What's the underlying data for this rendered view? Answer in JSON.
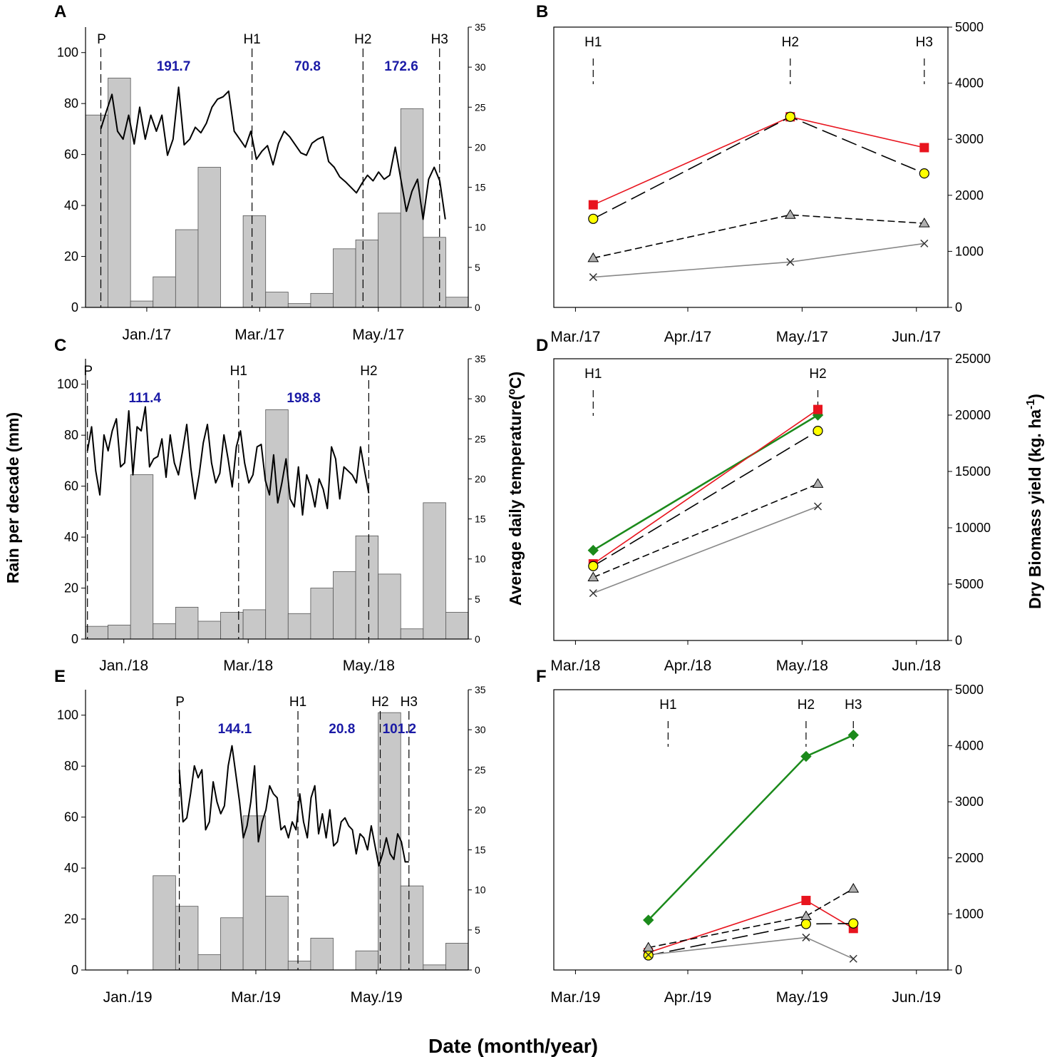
{
  "figure": {
    "xlabel": "Date (month/year)",
    "ylabel_left": "Rain per decade (mm)",
    "ylabel_mid": "Average daily temperature(ºC)",
    "ylabel_right_main": "Dry Biomass yield (kg. ha",
    "ylabel_right_sup": "-1",
    "ylabel_right_close": ")"
  },
  "colors": {
    "bar": "#c8c8c8",
    "bar_stroke": "#555555",
    "temp_line": "#000000",
    "rain_text": "#1a1aa6",
    "red": "#e8141e",
    "yellow": "#ffff00",
    "green": "#1b8a1b",
    "gray": "#b0b0b0"
  },
  "chart_data": [
    {
      "id": "A",
      "type": "bar+line",
      "xlim": [
        0,
        100
      ],
      "month_labels": [
        {
          "x": 16,
          "text": "Jan./17"
        },
        {
          "x": 45.5,
          "text": "Mar./17"
        },
        {
          "x": 76.5,
          "text": "May./17"
        }
      ],
      "rain_ylim": [
        0,
        110
      ],
      "rain_ticks": [
        0,
        20,
        40,
        60,
        80,
        100
      ],
      "temp_ylim": [
        0,
        35
      ],
      "temp_ticks": [
        0,
        5,
        10,
        15,
        20,
        25,
        30,
        35
      ],
      "rain_bars": [
        75.5,
        90,
        2.5,
        12,
        30.5,
        55,
        0,
        36,
        6,
        1.5,
        5.5,
        23,
        26.5,
        37,
        78,
        27.5,
        4
      ],
      "events": [
        {
          "x": 4,
          "label": "P"
        },
        {
          "x": 43.5,
          "label": "H1"
        },
        {
          "x": 72.5,
          "label": "H2"
        },
        {
          "x": 92.5,
          "label": "H3"
        }
      ],
      "rain_sums": [
        {
          "x": 23,
          "text": "191.7"
        },
        {
          "x": 58,
          "text": "70.8"
        },
        {
          "x": 82.5,
          "text": "172.6"
        }
      ],
      "temperature": {
        "x0": 4,
        "x1": 94,
        "values": [
          22.3,
          24.5,
          26.6,
          22.0,
          21.0,
          24.0,
          20.4,
          25.0,
          21.0,
          24.0,
          22.0,
          24.0,
          19.0,
          21.0,
          27.5,
          20.3,
          21.0,
          22.5,
          21.8,
          23.0,
          25.0,
          26.0,
          26.3,
          27.0,
          22.0,
          21.0,
          20.0,
          22.0,
          18.5,
          19.5,
          20.2,
          17.8,
          20.5,
          22.0,
          21.3,
          20.3,
          19.3,
          19.0,
          20.5,
          21.0,
          21.3,
          18.2,
          17.5,
          16.3,
          15.7,
          15.0,
          14.3,
          15.5,
          16.5,
          15.8,
          16.9,
          16.0,
          16.5,
          20.0,
          16.0,
          12.0,
          14.5,
          16.0,
          11.0,
          16.0,
          17.5,
          15.8,
          11.0
        ]
      }
    },
    {
      "id": "B",
      "type": "line",
      "xlim": [
        0,
        100
      ],
      "month_labels": [
        {
          "x": 5.5,
          "text": "Mar./17"
        },
        {
          "x": 34,
          "text": "Apr./17"
        },
        {
          "x": 63,
          "text": "May./17"
        },
        {
          "x": 92,
          "text": "Jun./17"
        }
      ],
      "ylim": [
        0,
        5000
      ],
      "yticks": [
        0,
        1000,
        2000,
        3000,
        4000,
        5000
      ],
      "harvests": [
        {
          "x": 10,
          "label": "H1"
        },
        {
          "x": 60,
          "label": "H2"
        },
        {
          "x": 94,
          "label": "H3"
        }
      ],
      "series": [
        {
          "name": "red square",
          "marker": "square",
          "color": "#e8141e",
          "dash": "",
          "x": [
            10,
            60,
            94
          ],
          "values": [
            1830,
            3400,
            2850
          ]
        },
        {
          "name": "yellow circle",
          "marker": "circle",
          "color": "#000000",
          "dash": "22 8",
          "x": [
            10,
            60,
            94
          ],
          "values": [
            1580,
            3400,
            2390
          ]
        },
        {
          "name": "gray triangle",
          "marker": "triangle",
          "color": "#000000",
          "dash": "10 5",
          "x": [
            10,
            60,
            94
          ],
          "values": [
            880,
            1650,
            1500
          ]
        },
        {
          "name": "cross",
          "marker": "x",
          "color": "#888888",
          "dash": "",
          "x": [
            10,
            60,
            94
          ],
          "values": [
            540,
            810,
            1140
          ]
        }
      ]
    },
    {
      "id": "C",
      "type": "bar+line",
      "xlim": [
        0,
        100
      ],
      "month_labels": [
        {
          "x": 10,
          "text": "Jan./18"
        },
        {
          "x": 42.5,
          "text": "Mar./18"
        },
        {
          "x": 74,
          "text": "May./18"
        }
      ],
      "rain_ylim": [
        0,
        110
      ],
      "rain_ticks": [
        0,
        20,
        40,
        60,
        80,
        100
      ],
      "temp_ylim": [
        0,
        35
      ],
      "temp_ticks": [
        0,
        5,
        10,
        15,
        20,
        25,
        30,
        35
      ],
      "rain_bars": [
        5,
        5.5,
        64.5,
        6,
        12.5,
        7,
        10.5,
        11.5,
        90,
        10,
        20,
        26.5,
        40.5,
        25.5,
        4,
        53.5,
        10.5
      ],
      "events": [
        {
          "x": 0.5,
          "label": "P"
        },
        {
          "x": 40,
          "label": "H1"
        },
        {
          "x": 74,
          "label": "H2"
        }
      ],
      "rain_sums": [
        {
          "x": 15.5,
          "text": "111.4"
        },
        {
          "x": 57,
          "text": "198.8"
        }
      ],
      "temperature": {
        "x0": 0.5,
        "x1": 74,
        "values": [
          23.5,
          26.5,
          21.0,
          18.0,
          25.5,
          23.5,
          26.0,
          27.5,
          21.5,
          22.0,
          28.5,
          20.5,
          26.5,
          26.0,
          29.0,
          21.5,
          22.5,
          22.8,
          25.0,
          20.2,
          25.5,
          22.0,
          20.5,
          23.5,
          26.8,
          21.3,
          17.5,
          20.5,
          24.5,
          26.8,
          22.0,
          19.5,
          20.7,
          25.5,
          22.5,
          19.0,
          24.0,
          26.0,
          22.0,
          19.5,
          20.5,
          24.0,
          24.3,
          19.8,
          18.0,
          23.0,
          17.0,
          19.5,
          22.5,
          17.5,
          16.5,
          21.5,
          15.5,
          20.5,
          19.0,
          16.5,
          20.0,
          18.7,
          16.3,
          24.0,
          22.5,
          17.5,
          21.5,
          21.0,
          20.5,
          19.5,
          24.0,
          21.0,
          18.2
        ]
      }
    },
    {
      "id": "D",
      "type": "line",
      "xlim": [
        0,
        100
      ],
      "month_labels": [
        {
          "x": 5.5,
          "text": "Mar./18"
        },
        {
          "x": 34,
          "text": "Apr./18"
        },
        {
          "x": 63,
          "text": "May./18"
        },
        {
          "x": 92,
          "text": "Jun./18"
        }
      ],
      "ylim": [
        0,
        25000
      ],
      "yticks": [
        0,
        5000,
        10000,
        15000,
        20000,
        25000
      ],
      "harvests": [
        {
          "x": 10,
          "label": "H1"
        },
        {
          "x": 67,
          "label": "H2"
        }
      ],
      "series": [
        {
          "name": "green diamond",
          "marker": "diamond",
          "color": "#1b8a1b",
          "dash": "",
          "x": [
            10,
            67
          ],
          "values": [
            8000,
            20000
          ]
        },
        {
          "name": "red square",
          "marker": "square",
          "color": "#e8141e",
          "dash": "",
          "x": [
            10,
            67
          ],
          "values": [
            6800,
            20500
          ]
        },
        {
          "name": "yellow circle",
          "marker": "circle",
          "color": "#000000",
          "dash": "22 8",
          "x": [
            10,
            67
          ],
          "values": [
            6600,
            18600
          ]
        },
        {
          "name": "gray triangle",
          "marker": "triangle",
          "color": "#000000",
          "dash": "10 5",
          "x": [
            10,
            67
          ],
          "values": [
            5600,
            13900
          ]
        },
        {
          "name": "cross",
          "marker": "x",
          "color": "#888888",
          "dash": "",
          "x": [
            10,
            67
          ],
          "values": [
            4200,
            11900
          ]
        }
      ]
    },
    {
      "id": "E",
      "type": "bar+line",
      "xlim": [
        0,
        100
      ],
      "month_labels": [
        {
          "x": 11,
          "text": "Jan./19"
        },
        {
          "x": 44.5,
          "text": "Mar./19"
        },
        {
          "x": 76,
          "text": "May./19"
        }
      ],
      "rain_ylim": [
        0,
        110
      ],
      "rain_ticks": [
        0,
        20,
        40,
        60,
        80,
        100
      ],
      "temp_ylim": [
        0,
        35
      ],
      "temp_ticks": [
        0,
        5,
        10,
        15,
        20,
        25,
        30,
        35
      ],
      "rain_bars": [
        0,
        0,
        0,
        37,
        25,
        6,
        20.5,
        60.5,
        29,
        3.5,
        12.5,
        0,
        7.5,
        101,
        33,
        2,
        10.5
      ],
      "events": [
        {
          "x": 24.5,
          "label": "P"
        },
        {
          "x": 55.5,
          "label": "H1"
        },
        {
          "x": 77,
          "label": "H2"
        },
        {
          "x": 84.5,
          "label": "H3"
        }
      ],
      "rain_sums": [
        {
          "x": 39,
          "text": "144.1"
        },
        {
          "x": 67,
          "text": "20.8"
        },
        {
          "x": 82,
          "text": "101.2"
        }
      ],
      "temperature": {
        "x0": 24.5,
        "x1": 84.5,
        "values": [
          25.0,
          18.5,
          19.0,
          22.0,
          25.5,
          24.0,
          25.0,
          17.5,
          18.5,
          23.5,
          21.0,
          19.5,
          20.5,
          25.5,
          28.0,
          24.5,
          21.0,
          16.5,
          18.0,
          21.0,
          25.5,
          16.0,
          18.5,
          20.0,
          23.0,
          22.0,
          21.5,
          17.5,
          18.0,
          16.5,
          18.5,
          17.5,
          22.0,
          18.5,
          16.5,
          21.5,
          23.0,
          17.0,
          19.5,
          16.5,
          20.0,
          15.5,
          16.0,
          18.5,
          19.0,
          18.0,
          17.5,
          14.5,
          17.0,
          16.5,
          15.0,
          18.0,
          15.5,
          13.0,
          14.5,
          16.5,
          14.5,
          13.8,
          17.0,
          16.0,
          13.5,
          13.5
        ]
      }
    },
    {
      "id": "F",
      "type": "line",
      "xlim": [
        0,
        100
      ],
      "month_labels": [
        {
          "x": 5.5,
          "text": "Mar./19"
        },
        {
          "x": 34,
          "text": "Apr./19"
        },
        {
          "x": 63,
          "text": "May./19"
        },
        {
          "x": 92,
          "text": "Jun./19"
        }
      ],
      "ylim": [
        0,
        5000
      ],
      "yticks": [
        0,
        1000,
        2000,
        3000,
        4000,
        5000
      ],
      "harvests": [
        {
          "x": 29,
          "label": "H1"
        },
        {
          "x": 64,
          "label": "H2"
        },
        {
          "x": 76,
          "label": "H3"
        }
      ],
      "series": [
        {
          "name": "green diamond",
          "marker": "diamond",
          "color": "#1b8a1b",
          "dash": "",
          "x": [
            24,
            64,
            76
          ],
          "values": [
            890,
            3810,
            4190
          ]
        },
        {
          "name": "red square",
          "marker": "square",
          "color": "#e8141e",
          "dash": "",
          "x": [
            24,
            64,
            76
          ],
          "values": [
            310,
            1240,
            740
          ]
        },
        {
          "name": "yellow circle",
          "marker": "circle",
          "color": "#000000",
          "dash": "22 8",
          "x": [
            24,
            64,
            76
          ],
          "values": [
            260,
            820,
            830
          ]
        },
        {
          "name": "gray triangle",
          "marker": "triangle",
          "color": "#000000",
          "dash": "10 5",
          "x": [
            24,
            64,
            76
          ],
          "values": [
            400,
            960,
            1450
          ]
        },
        {
          "name": "cross",
          "marker": "x",
          "color": "#888888",
          "dash": "",
          "x": [
            24,
            64,
            76
          ],
          "values": [
            270,
            580,
            200
          ]
        }
      ]
    }
  ]
}
